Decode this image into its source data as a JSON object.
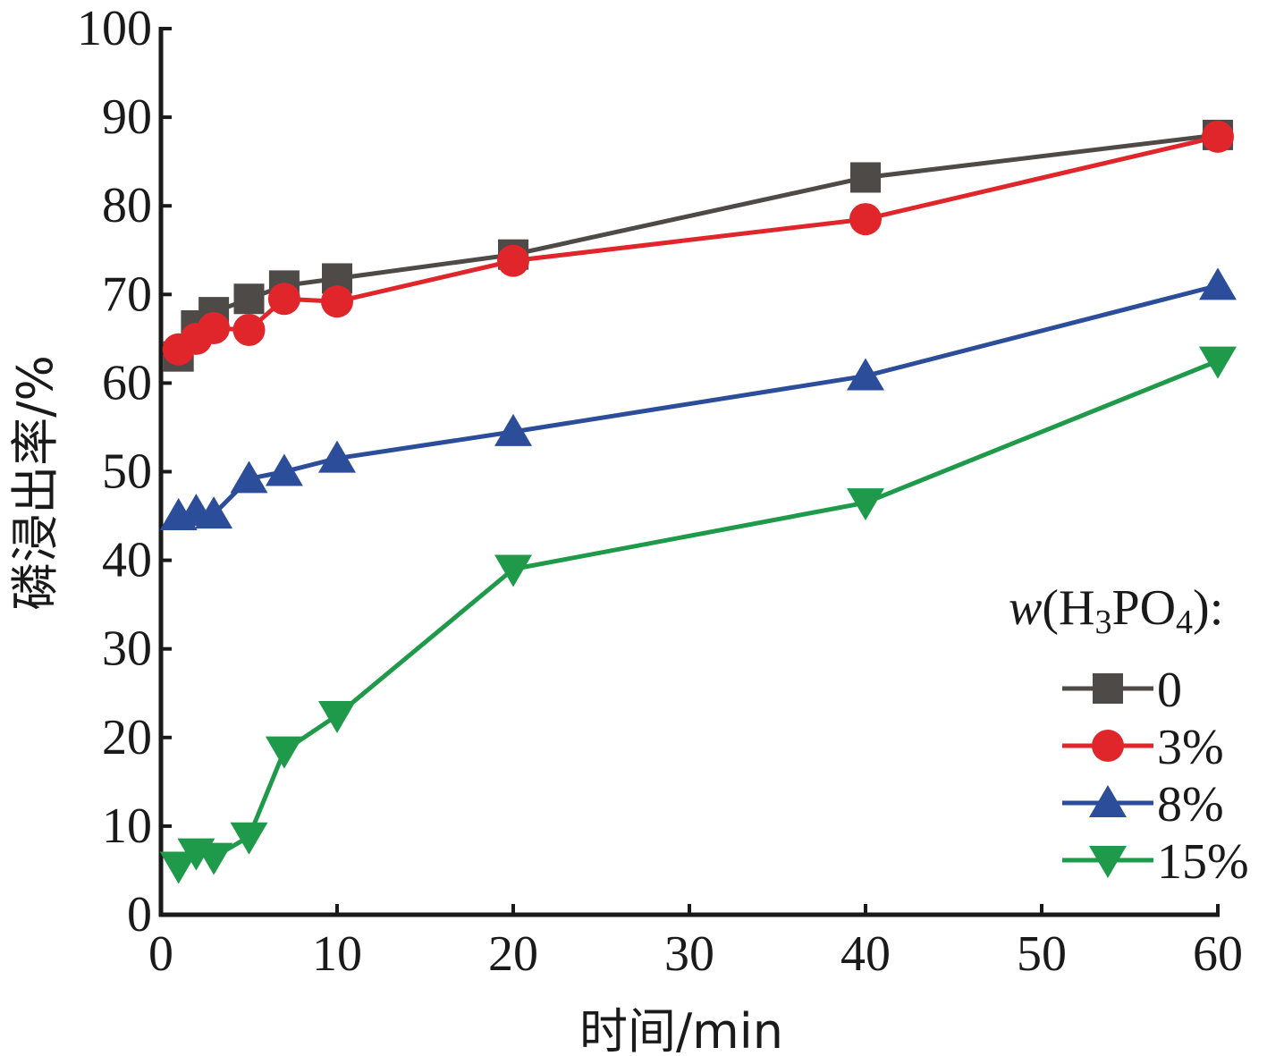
{
  "chart_data": {
    "type": "line",
    "title": "",
    "xlabel": "时间/min",
    "ylabel": "磷浸出率/%",
    "xlim": [
      0,
      60
    ],
    "ylim": [
      0,
      100
    ],
    "xticks": [
      "0",
      "10",
      "20",
      "30",
      "40",
      "50",
      "60"
    ],
    "yticks": [
      "0",
      "10",
      "20",
      "30",
      "40",
      "50",
      "60",
      "70",
      "80",
      "90",
      "100"
    ],
    "grid": false,
    "legend": {
      "placement": "bottom-right",
      "title_italic": "w",
      "title_rest": "(H",
      "title_sub1": "3",
      "title_mid": "PO",
      "title_sub2": "4",
      "title_end": "):"
    },
    "series": [
      {
        "name": "0",
        "color": "#4d4a48",
        "marker": "square",
        "x": [
          1,
          2,
          3,
          5,
          7,
          10,
          20,
          40,
          60
        ],
        "y": [
          63,
          66.5,
          68,
          69.5,
          71,
          71.8,
          74.5,
          83.2,
          88
        ]
      },
      {
        "name": "3%",
        "color": "#e0262b",
        "marker": "circle",
        "x": [
          1,
          2,
          3,
          5,
          7,
          10,
          20,
          40,
          60
        ],
        "y": [
          63.8,
          65,
          66.2,
          66,
          69.5,
          69.2,
          73.8,
          78.5,
          87.8
        ]
      },
      {
        "name": "8%",
        "color": "#2c4e9a",
        "marker": "triangle-up",
        "x": [
          1,
          2,
          3,
          5,
          7,
          10,
          20,
          40,
          60
        ],
        "y": [
          45,
          45.5,
          45.2,
          49.2,
          50,
          51.5,
          54.5,
          60.8,
          71
        ]
      },
      {
        "name": "15%",
        "color": "#1f9a4a",
        "marker": "triangle-down",
        "x": [
          1,
          2,
          3,
          5,
          7,
          10,
          20,
          40,
          60
        ],
        "y": [
          5.5,
          7,
          6.5,
          8.8,
          18.5,
          22.5,
          39,
          46.5,
          62.5
        ]
      }
    ]
  }
}
